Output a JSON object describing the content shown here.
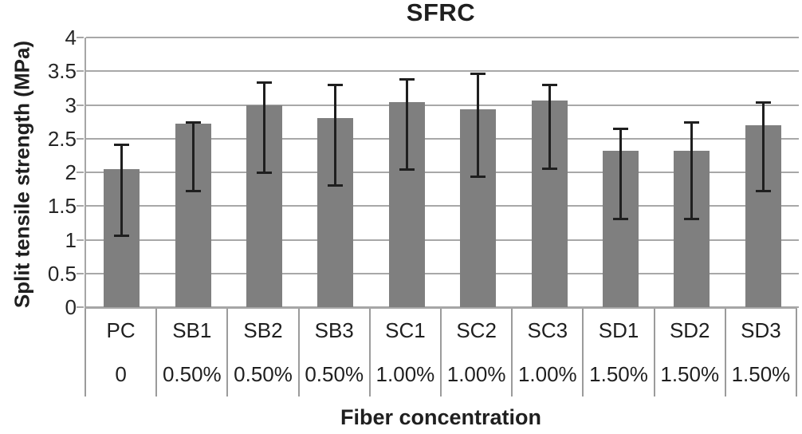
{
  "chart_data": {
    "type": "bar",
    "title": "SFRC",
    "ylabel": "Split tensile strength (MPa)",
    "xlabel": "Fiber concentration",
    "ylim": [
      0,
      4
    ],
    "yticks": [
      4,
      3.5,
      3,
      2.5,
      2,
      1.5,
      1,
      0.5,
      0
    ],
    "grid": "horizontal",
    "legend": "none",
    "categories": [
      "PC",
      "SB1",
      "SB2",
      "SB3",
      "SC1",
      "SC2",
      "SC3",
      "SD1",
      "SD2",
      "SD3"
    ],
    "concentrations": [
      "0",
      "0.50%",
      "0.50%",
      "0.50%",
      "1.00%",
      "1.00%",
      "1.00%",
      "1.50%",
      "1.50%",
      "1.50%"
    ],
    "values": [
      2.05,
      2.72,
      3.0,
      2.8,
      3.04,
      2.93,
      3.06,
      2.32,
      2.32,
      2.7
    ],
    "error_high": [
      2.41,
      2.74,
      3.33,
      3.29,
      3.38,
      3.46,
      3.29,
      2.64,
      2.74,
      3.04
    ],
    "error_low": [
      1.06,
      1.72,
      2.0,
      1.8,
      2.04,
      1.93,
      2.05,
      1.31,
      1.31,
      1.72
    ],
    "colors": {
      "bar": "#7f7f7f",
      "gridline": "#a8a8a8",
      "error_bar": "#1f1f1f",
      "text": "#1f1f1f",
      "background": "#ffffff"
    }
  }
}
